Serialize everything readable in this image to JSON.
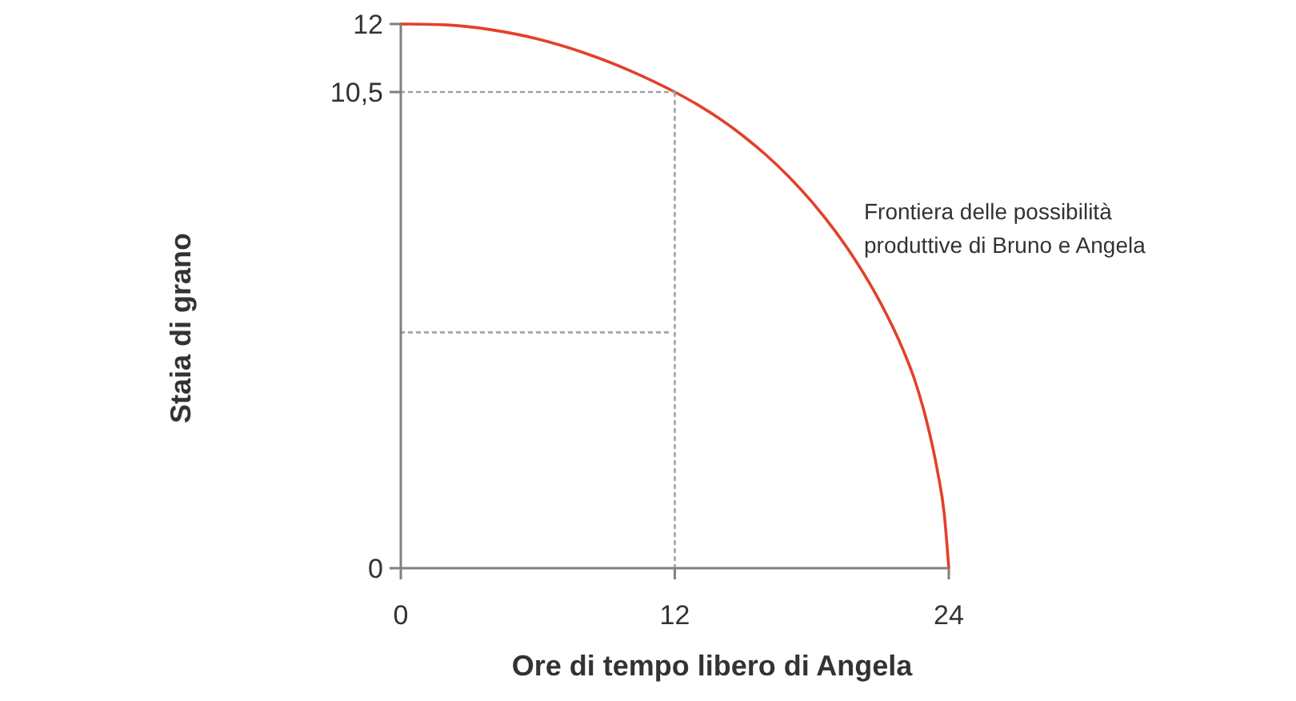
{
  "chart_data": {
    "type": "line",
    "xlabel": "Ore di tempo libero di Angela",
    "ylabel": "Staia di grano",
    "xlim": [
      0,
      24
    ],
    "ylim": [
      0,
      12
    ],
    "xticks": [
      0,
      12,
      24
    ],
    "yticks": [
      0,
      {
        "value": 10.5,
        "label": "10,5"
      },
      12
    ],
    "series": [
      {
        "name": "Frontiera delle possibilità produttive di Bruno e Angela",
        "color": "#e2412b",
        "x": [
          0,
          2,
          4,
          6,
          8,
          10,
          12,
          13,
          14,
          15,
          16,
          17,
          18,
          19,
          20,
          21,
          22,
          22.5,
          23,
          23.5,
          23.8,
          24
        ],
        "values": [
          12,
          11.98,
          11.87,
          11.67,
          11.37,
          10.98,
          10.5,
          10.22,
          9.9,
          9.53,
          9.11,
          8.63,
          8.08,
          7.45,
          6.72,
          5.86,
          4.81,
          4.16,
          3.3,
          2.15,
          1.2,
          0
        ]
      },
      {
        "color": "#a0a0a0",
        "line_style": "dotted",
        "x": [
          12,
          12
        ],
        "values": [
          0,
          10.5
        ]
      },
      {
        "color": "#a0a0a0",
        "line_style": "dotted",
        "x": [
          0,
          12
        ],
        "values": [
          10.5,
          10.5
        ]
      },
      {
        "color": "#a0a0a0",
        "line_style": "dotted",
        "x": [
          0,
          11.7
        ],
        "values": [
          5.2,
          5.2
        ]
      }
    ]
  }
}
